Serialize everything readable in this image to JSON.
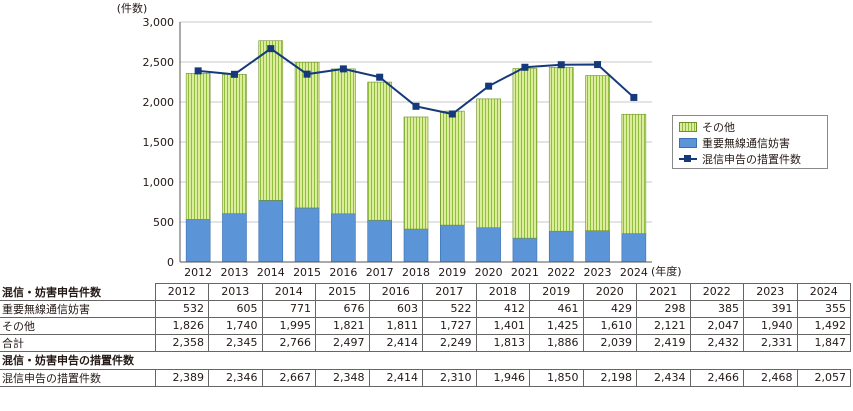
{
  "chart_data": {
    "type": "bar+line",
    "y_unit": "(件数)",
    "x_unit": "(年度)",
    "categories": [
      "2012",
      "2013",
      "2014",
      "2015",
      "2016",
      "2017",
      "2018",
      "2019",
      "2020",
      "2021",
      "2022",
      "2023",
      "2024"
    ],
    "ylim": [
      0,
      3000
    ],
    "yticks": [
      "0",
      "500",
      "1,000",
      "1,500",
      "2,000",
      "2,500",
      "3,000"
    ],
    "ytick_values": [
      0,
      500,
      1000,
      1500,
      2000,
      2500,
      3000
    ],
    "stacked_series": [
      {
        "name": "重要無線通信妨害",
        "color": "#5b95d8",
        "values": [
          532,
          605,
          771,
          676,
          603,
          522,
          412,
          461,
          429,
          298,
          385,
          391,
          355
        ]
      },
      {
        "name": "その他",
        "color": "#c7e07a",
        "values": [
          1826,
          1740,
          1995,
          1821,
          1811,
          1727,
          1401,
          1425,
          1610,
          2121,
          2047,
          1940,
          1492
        ]
      }
    ],
    "line_series": {
      "name": "混信申告の措置件数",
      "color": "#15397a",
      "values": [
        2389,
        2346,
        2667,
        2348,
        2414,
        2310,
        1946,
        1850,
        2198,
        2434,
        2466,
        2468,
        2057
      ]
    },
    "legend": [
      "その他",
      "重要無線通信妨害",
      "混信申告の措置件数"
    ],
    "legend_position": "right"
  },
  "table1": {
    "title": "混信・妨害申告件数",
    "years": [
      "2012",
      "2013",
      "2014",
      "2015",
      "2016",
      "2017",
      "2018",
      "2019",
      "2020",
      "2021",
      "2022",
      "2023",
      "2024"
    ],
    "rows": [
      {
        "label": "重要無線通信妨害",
        "values": [
          "532",
          "605",
          "771",
          "676",
          "603",
          "522",
          "412",
          "461",
          "429",
          "298",
          "385",
          "391",
          "355"
        ]
      },
      {
        "label": "その他",
        "values": [
          "1,826",
          "1,740",
          "1,995",
          "1,821",
          "1,811",
          "1,727",
          "1,401",
          "1,425",
          "1,610",
          "2,121",
          "2,047",
          "1,940",
          "1,492"
        ]
      },
      {
        "label": "合計",
        "values": [
          "2,358",
          "2,345",
          "2,766",
          "2,497",
          "2,414",
          "2,249",
          "1,813",
          "1,886",
          "2,039",
          "2,419",
          "2,432",
          "2,331",
          "1,847"
        ]
      }
    ]
  },
  "table2": {
    "title": "混信・妨害申告の措置件数",
    "rows": [
      {
        "label": "混信申告の措置件数",
        "values": [
          "2,389",
          "2,346",
          "2,667",
          "2,348",
          "2,414",
          "2,310",
          "1,946",
          "1,850",
          "2,198",
          "2,434",
          "2,466",
          "2,468",
          "2,057"
        ]
      }
    ]
  }
}
